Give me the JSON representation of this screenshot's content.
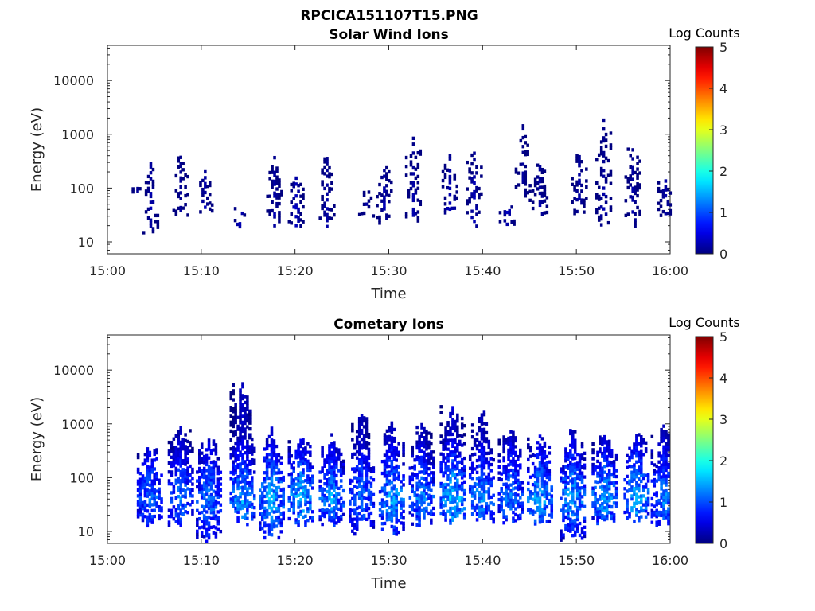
{
  "figure": {
    "title": "RPCICA151107T15.PNG"
  },
  "chart_data": [
    {
      "type": "heatmap",
      "title": "Solar Wind Ions",
      "xlabel": "Time",
      "ylabel": "Energy (eV)",
      "x_ticks": [
        "15:00",
        "15:10",
        "15:20",
        "15:30",
        "15:40",
        "15:50",
        "16:00"
      ],
      "x_range": [
        "15:00",
        "16:00"
      ],
      "y_scale": "log",
      "y_range": [
        6,
        45000
      ],
      "y_ticks": [
        10,
        100,
        1000,
        10000
      ],
      "y_tick_labels": [
        "10",
        "100",
        "1000",
        "10000"
      ],
      "colorbar": {
        "label": "Log Counts",
        "range": [
          0,
          5
        ],
        "ticks": [
          0,
          1,
          2,
          3,
          4,
          5
        ],
        "colormap": "jet"
      },
      "z_units": "log10 counts",
      "bursts": [
        {
          "minute": 3.2,
          "e_low": 80,
          "e_high": 100,
          "level": 0.2
        },
        {
          "minute": 4.6,
          "e_low": 12,
          "e_high": 300,
          "level": 0.3
        },
        {
          "minute": 7.8,
          "e_low": 28,
          "e_high": 380,
          "level": 0.2
        },
        {
          "minute": 10.4,
          "e_low": 28,
          "e_high": 200,
          "level": 0.3
        },
        {
          "minute": 14.1,
          "e_low": 18,
          "e_high": 45,
          "level": 0.4
        },
        {
          "minute": 17.8,
          "e_low": 18,
          "e_high": 380,
          "level": 0.3
        },
        {
          "minute": 20.1,
          "e_low": 18,
          "e_high": 150,
          "level": 0.4
        },
        {
          "minute": 23.4,
          "e_low": 18,
          "e_high": 380,
          "level": 0.3
        },
        {
          "minute": 27.6,
          "e_low": 28,
          "e_high": 100,
          "level": 0.2
        },
        {
          "minute": 29.5,
          "e_low": 18,
          "e_high": 300,
          "level": 0.3
        },
        {
          "minute": 32.6,
          "e_low": 18,
          "e_high": 950,
          "level": 0.3
        },
        {
          "minute": 36.5,
          "e_low": 28,
          "e_high": 380,
          "level": 0.4
        },
        {
          "minute": 39.1,
          "e_low": 18,
          "e_high": 550,
          "level": 0.4
        },
        {
          "minute": 42.6,
          "e_low": 18,
          "e_high": 45,
          "level": 0.4
        },
        {
          "minute": 44.3,
          "e_low": 45,
          "e_high": 1800,
          "level": 0.3
        },
        {
          "minute": 46.1,
          "e_low": 28,
          "e_high": 300,
          "level": 0.3
        },
        {
          "minute": 50.3,
          "e_low": 30,
          "e_high": 450,
          "level": 0.3
        },
        {
          "minute": 52.9,
          "e_low": 18,
          "e_high": 1800,
          "level": 0.3
        },
        {
          "minute": 56.0,
          "e_low": 18,
          "e_high": 650,
          "level": 0.3
        },
        {
          "minute": 59.5,
          "e_low": 28,
          "e_high": 130,
          "level": 0.3
        }
      ]
    },
    {
      "type": "heatmap",
      "title": "Cometary Ions",
      "xlabel": "Time",
      "ylabel": "Energy (eV)",
      "x_ticks": [
        "15:00",
        "15:10",
        "15:20",
        "15:30",
        "15:40",
        "15:50",
        "16:00"
      ],
      "x_range": [
        "15:00",
        "16:00"
      ],
      "y_scale": "log",
      "y_range": [
        6,
        45000
      ],
      "y_ticks": [
        10,
        100,
        1000,
        10000
      ],
      "y_tick_labels": [
        "10",
        "100",
        "1000",
        "10000"
      ],
      "colorbar": {
        "label": "Log Counts",
        "range": [
          0,
          5
        ],
        "ticks": [
          0,
          1,
          2,
          3,
          4,
          5
        ],
        "colormap": "jet"
      },
      "z_units": "log10 counts",
      "bursts": [
        {
          "minute": 4.5,
          "e_low": 12,
          "e_high": 380,
          "level": 1.5
        },
        {
          "minute": 7.8,
          "e_low": 12,
          "e_high": 900,
          "level": 1.5
        },
        {
          "minute": 10.8,
          "e_low": 6,
          "e_high": 500,
          "level": 1.6
        },
        {
          "minute": 14.4,
          "e_low": 12,
          "e_high": 5500,
          "level": 1.8
        },
        {
          "minute": 17.5,
          "e_low": 6,
          "e_high": 800,
          "level": 1.9
        },
        {
          "minute": 20.6,
          "e_low": 12,
          "e_high": 500,
          "level": 1.9
        },
        {
          "minute": 23.9,
          "e_low": 12,
          "e_high": 650,
          "level": 1.7
        },
        {
          "minute": 27.1,
          "e_low": 8,
          "e_high": 1400,
          "level": 1.5
        },
        {
          "minute": 30.3,
          "e_low": 8,
          "e_high": 1000,
          "level": 1.8
        },
        {
          "minute": 33.5,
          "e_low": 12,
          "e_high": 950,
          "level": 1.6
        },
        {
          "minute": 36.8,
          "e_low": 12,
          "e_high": 2200,
          "level": 2.0
        },
        {
          "minute": 39.9,
          "e_low": 12,
          "e_high": 1700,
          "level": 1.7
        },
        {
          "minute": 43.0,
          "e_low": 12,
          "e_high": 750,
          "level": 1.6
        },
        {
          "minute": 46.1,
          "e_low": 12,
          "e_high": 600,
          "level": 1.8
        },
        {
          "minute": 49.6,
          "e_low": 6,
          "e_high": 800,
          "level": 1.8
        },
        {
          "minute": 53.0,
          "e_low": 12,
          "e_high": 600,
          "level": 1.8
        },
        {
          "minute": 56.4,
          "e_low": 12,
          "e_high": 600,
          "level": 1.9
        },
        {
          "minute": 59.3,
          "e_low": 12,
          "e_high": 900,
          "level": 1.6
        }
      ]
    }
  ]
}
